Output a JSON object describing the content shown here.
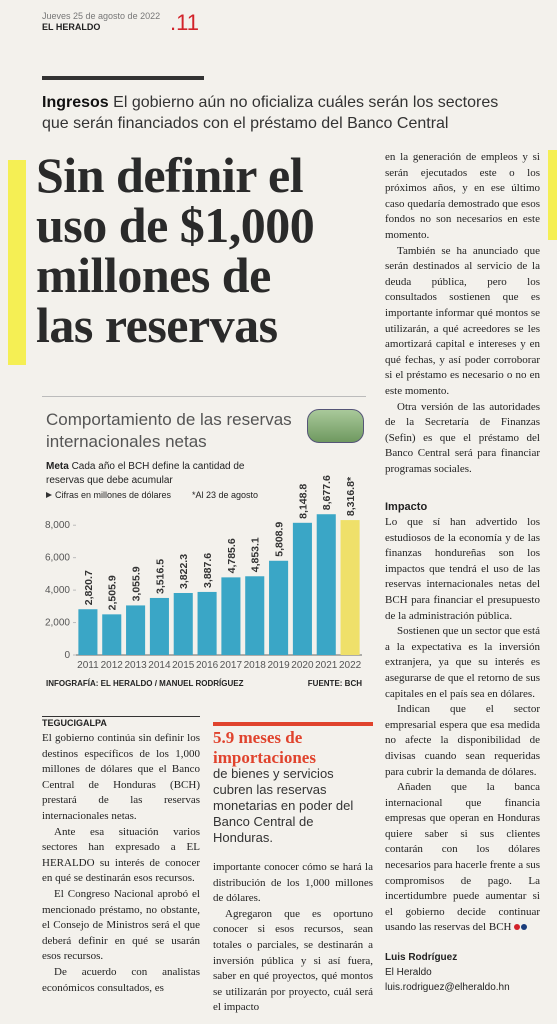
{
  "header": {
    "date": "Jueves 25 de agosto de 2022",
    "paper": "EL HERALDO",
    "page": ".11"
  },
  "deck": {
    "kicker": "Ingresos",
    "text": "El gobierno aún no oficializa cuáles serán los sectores que serán financiados con el préstamo del Banco Central"
  },
  "headline": [
    "Sin definir el",
    "uso de $1,000",
    "millones de",
    "las reservas"
  ],
  "chart_data": {
    "type": "bar",
    "title": "Comportamiento de las reservas internacionales netas",
    "subtitle_kicker": "Meta",
    "subtitle": "Cada año el BCH define la cantidad de reservas que debe acumular",
    "unit_note": "Cifras en millones de dólares",
    "note": "*Al 23 de agosto",
    "credit": "INFOGRAFÍA: EL HERALDO / MANUEL RODRÍGUEZ",
    "source": "FUENTE: BCH",
    "categories": [
      "2011",
      "2012",
      "2013",
      "2014",
      "2015",
      "2016",
      "2017",
      "2018",
      "2019",
      "2020",
      "2021",
      "2022"
    ],
    "values": [
      2820.7,
      2505.9,
      3055.9,
      3516.5,
      3822.3,
      3887.6,
      4785.6,
      4853.1,
      5808.9,
      8148.8,
      8677.6,
      8316.8
    ],
    "value_labels": [
      "2,820.7",
      "2,505.9",
      "3,055.9",
      "3,516.5",
      "3,822.3",
      "3,887.6",
      "4,785.6",
      "4,853.1",
      "5,808.9",
      "8,148.8",
      "8,677.6",
      "8,316.8*"
    ],
    "colors": [
      "#3aa6c6",
      "#3aa6c6",
      "#3aa6c6",
      "#3aa6c6",
      "#3aa6c6",
      "#3aa6c6",
      "#3aa6c6",
      "#3aa6c6",
      "#3aa6c6",
      "#3aa6c6",
      "#3aa6c6",
      "#efe06a"
    ],
    "ylim": [
      0,
      9000
    ],
    "yticks": [
      0,
      {
        "value": 2000,
        "label": "2,000"
      },
      {
        "value": 4000,
        "label": "4,000"
      },
      {
        "value": 6000,
        "label": "6,000"
      },
      {
        "value": 8000,
        "label": "8,000"
      }
    ],
    "grid": false
  },
  "sidebar": {
    "figure": "5.9 meses de importaciones",
    "text": "de bienes y servicios cubren las reservas monetarias en poder del Banco Central de Honduras."
  },
  "columns": {
    "dateline": "TEGUCIGALPA",
    "left": [
      "El gobierno continúa sin definir los destinos específicos de los 1,000 millones de dólares que el Banco Central de Honduras (BCH) prestará de las reservas internacionales netas.",
      "Ante esa situación varios sectores han expresado a EL HERALDO su interés de conocer en qué se destinarán esos recursos.",
      "El Congreso Nacional aprobó el mencionado préstamo, no obstante, el Consejo de Ministros será el que deberá definir en qué se usarán esos recursos.",
      "De acuerdo con analistas económicos consultados, es"
    ],
    "middle": [
      "importante conocer cómo se hará la distribución de los 1,000 millones de dólares.",
      "Agregaron que es oportuno conocer si esos recursos, sean totales o parciales, se destinarán a inversión pública y si así fuera, saber en qué proyectos, qué montos se utilizarán por proyecto, cuál será el impacto"
    ],
    "right_top": [
      "en la generación de empleos y si serán ejecutados este o los próximos años, y en ese último caso quedaría demostrado que esos fondos no son necesarios en este momento.",
      "También se ha anunciado que serán destinados al servicio de la deuda pública, pero los consultados sostienen que es importante informar qué montos se utilizarán, a qué acreedores se les amortizará capital e intereses y en qué fechas, y así poder corroborar si el préstamo es necesario o no en este momento.",
      "Otra versión de las autoridades de la Secretaría de Finanzas (Sefin) es que el préstamo del Banco Central será para financiar programas sociales."
    ],
    "subhead": "Impacto",
    "right_bottom": [
      "Lo que sí han advertido los estudiosos de la economía y de las finanzas hondureñas son los impactos que tendrá el uso de las reservas internacionales netas del BCH para financiar el presupuesto de la administración pública.",
      "Sostienen que un sector que está a la expectativa es la inversión extranjera, ya que su interés es asegurarse de que el retorno de sus capitales en el país sea en dólares.",
      "Indican que el sector empresarial espera que esa medida no afecte la disponibilidad de divisas cuando sean requeridas para cubrir la demanda de dólares.",
      "Añaden que la banca internacional que financia empresas que operan en Honduras quiere saber si sus clientes contarán con los dólares necesarios para hacerle frente a sus compromisos de pago. La incertidumbre puede aumentar si el gobierno decide continuar usando las reservas del BCH"
    ]
  },
  "byline": {
    "name": "Luis Rodríguez",
    "outlet": "El Heraldo",
    "email": "luis.rodriguez@elheraldo.hn"
  }
}
